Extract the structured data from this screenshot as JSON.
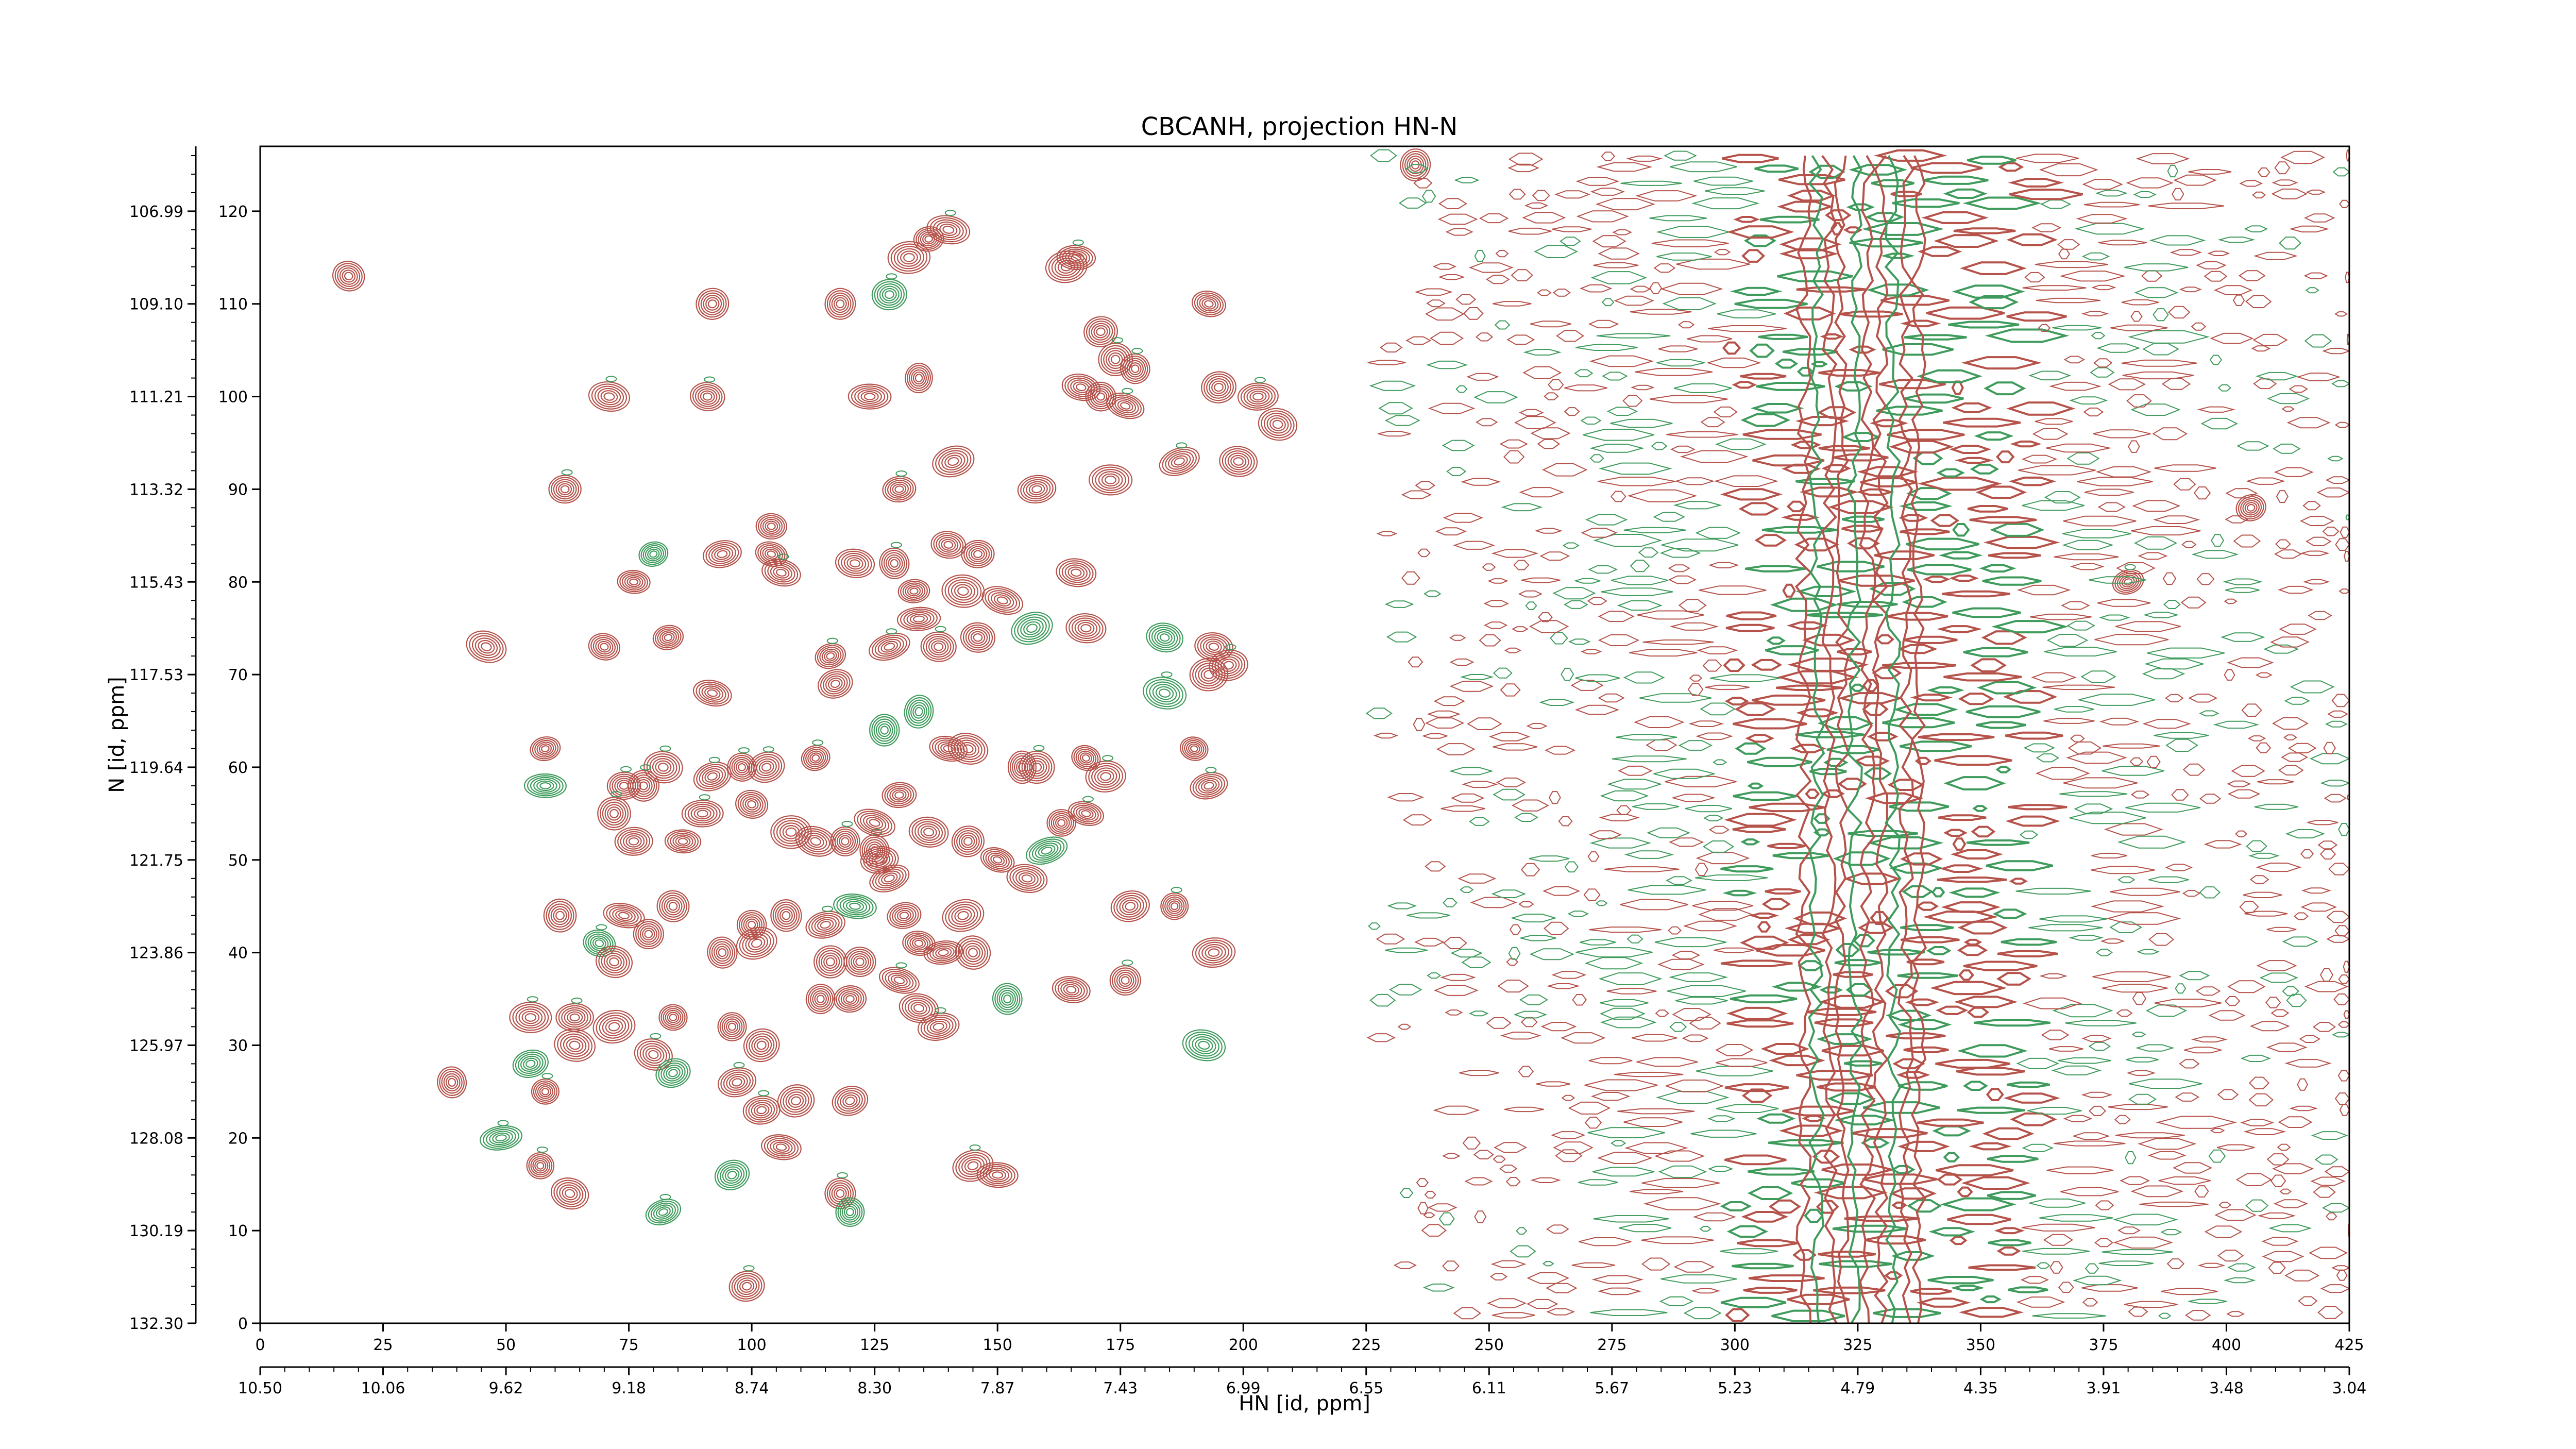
{
  "chart_data": {
    "type": "contour",
    "title": "CBCANH, projection HN-N",
    "xlabel": "HN [id, ppm]",
    "ylabel": "N [id, ppm]",
    "x_index_range": [
      0,
      425
    ],
    "y_index_range": [
      0,
      127
    ],
    "x_index_ticks": [
      0,
      25,
      50,
      75,
      100,
      125,
      150,
      175,
      200,
      225,
      250,
      275,
      300,
      325,
      350,
      375,
      400,
      425
    ],
    "y_index_ticks": [
      0,
      10,
      20,
      30,
      40,
      50,
      60,
      70,
      80,
      90,
      100,
      110,
      120
    ],
    "x_ppm_ticks": [
      "10.50",
      "10.06",
      "9.62",
      "9.18",
      "8.74",
      "8.30",
      "7.87",
      "7.43",
      "6.99",
      "6.55",
      "6.11",
      "5.67",
      "5.23",
      "4.79",
      "4.35",
      "3.91",
      "3.48",
      "3.04"
    ],
    "y_ppm_ticks": [
      "132.30",
      "130.19",
      "128.08",
      "125.97",
      "123.86",
      "121.75",
      "119.64",
      "117.53",
      "115.43",
      "113.32",
      "111.21",
      "109.10",
      "106.99"
    ],
    "colors": {
      "positive": "#b5524a",
      "negative": "#3f9b5c"
    },
    "peaks": [
      [
        18,
        113
      ],
      [
        235,
        125
      ],
      [
        92,
        110
      ],
      [
        118,
        110
      ],
      [
        128,
        111
      ],
      [
        132,
        115
      ],
      [
        136,
        117
      ],
      [
        140,
        118
      ],
      [
        164,
        114
      ],
      [
        166,
        115
      ],
      [
        171,
        107
      ],
      [
        174,
        104
      ],
      [
        178,
        103
      ],
      [
        193,
        110
      ],
      [
        71,
        100
      ],
      [
        91,
        100
      ],
      [
        124,
        100
      ],
      [
        134,
        102
      ],
      [
        167,
        101
      ],
      [
        171,
        100
      ],
      [
        176,
        99
      ],
      [
        195,
        101
      ],
      [
        203,
        100
      ],
      [
        207,
        97
      ],
      [
        187,
        93
      ],
      [
        199,
        93
      ],
      [
        141,
        93
      ],
      [
        158,
        90
      ],
      [
        130,
        90
      ],
      [
        173,
        91
      ],
      [
        62,
        90
      ],
      [
        76,
        80
      ],
      [
        80,
        83
      ],
      [
        94,
        83
      ],
      [
        104,
        83
      ],
      [
        104,
        86
      ],
      [
        106,
        81
      ],
      [
        121,
        82
      ],
      [
        129,
        82
      ],
      [
        140,
        84
      ],
      [
        146,
        83
      ],
      [
        143,
        79
      ],
      [
        133,
        79
      ],
      [
        134,
        76
      ],
      [
        151,
        78
      ],
      [
        166,
        81
      ],
      [
        168,
        75
      ],
      [
        157,
        75
      ],
      [
        46,
        73
      ],
      [
        83,
        74
      ],
      [
        70,
        73
      ],
      [
        92,
        68
      ],
      [
        116,
        72
      ],
      [
        117,
        69
      ],
      [
        128,
        73
      ],
      [
        138,
        73
      ],
      [
        146,
        74
      ],
      [
        184,
        74
      ],
      [
        184,
        68
      ],
      [
        193,
        70
      ],
      [
        194,
        73
      ],
      [
        197,
        71
      ],
      [
        127,
        64
      ],
      [
        134,
        66
      ],
      [
        144,
        62
      ],
      [
        140,
        62
      ],
      [
        158,
        60
      ],
      [
        168,
        61
      ],
      [
        155,
        60
      ],
      [
        172,
        59
      ],
      [
        190,
        62
      ],
      [
        193,
        58
      ],
      [
        103,
        60
      ],
      [
        113,
        61
      ],
      [
        98,
        60
      ],
      [
        92,
        59
      ],
      [
        82,
        60
      ],
      [
        78,
        58
      ],
      [
        74,
        58
      ],
      [
        58,
        58
      ],
      [
        58,
        62
      ],
      [
        72,
        55
      ],
      [
        76,
        52
      ],
      [
        86,
        52
      ],
      [
        90,
        55
      ],
      [
        100,
        56
      ],
      [
        108,
        53
      ],
      [
        113,
        52
      ],
      [
        119,
        52
      ],
      [
        125,
        51
      ],
      [
        128,
        48
      ],
      [
        125,
        54
      ],
      [
        130,
        57
      ],
      [
        136,
        53
      ],
      [
        144,
        52
      ],
      [
        150,
        50
      ],
      [
        156,
        48
      ],
      [
        160,
        51
      ],
      [
        163,
        54
      ],
      [
        168,
        55
      ],
      [
        186,
        45
      ],
      [
        61,
        44
      ],
      [
        74,
        44
      ],
      [
        84,
        45
      ],
      [
        79,
        42
      ],
      [
        69,
        41
      ],
      [
        72,
        39
      ],
      [
        94,
        40
      ],
      [
        100,
        43
      ],
      [
        107,
        44
      ],
      [
        101,
        41
      ],
      [
        115,
        43
      ],
      [
        116,
        39
      ],
      [
        122,
        39
      ],
      [
        131,
        44
      ],
      [
        134,
        41
      ],
      [
        139,
        40
      ],
      [
        143,
        44
      ],
      [
        145,
        40
      ],
      [
        121,
        45
      ],
      [
        126,
        50
      ],
      [
        177,
        45
      ],
      [
        194,
        40
      ],
      [
        55,
        33
      ],
      [
        64,
        33
      ],
      [
        72,
        32
      ],
      [
        84,
        33
      ],
      [
        96,
        32
      ],
      [
        102,
        30
      ],
      [
        114,
        35
      ],
      [
        120,
        35
      ],
      [
        130,
        37
      ],
      [
        134,
        34
      ],
      [
        138,
        32
      ],
      [
        152,
        35
      ],
      [
        165,
        36
      ],
      [
        176,
        37
      ],
      [
        192,
        30
      ],
      [
        64,
        30
      ],
      [
        80,
        29
      ],
      [
        84,
        27
      ],
      [
        39,
        26
      ],
      [
        55,
        28
      ],
      [
        58,
        25
      ],
      [
        97,
        26
      ],
      [
        102,
        23
      ],
      [
        109,
        24
      ],
      [
        120,
        24
      ],
      [
        49,
        20
      ],
      [
        57,
        17
      ],
      [
        106,
        19
      ],
      [
        96,
        16
      ],
      [
        145,
        17
      ],
      [
        150,
        16
      ],
      [
        63,
        14
      ],
      [
        82,
        12
      ],
      [
        118,
        14
      ],
      [
        120,
        12
      ],
      [
        99,
        4
      ],
      [
        405,
        88
      ],
      [
        380,
        80
      ]
    ],
    "noise_region_index_range": [
      225,
      425
    ],
    "vertical_ridge_index": [
      322,
      332
    ]
  }
}
